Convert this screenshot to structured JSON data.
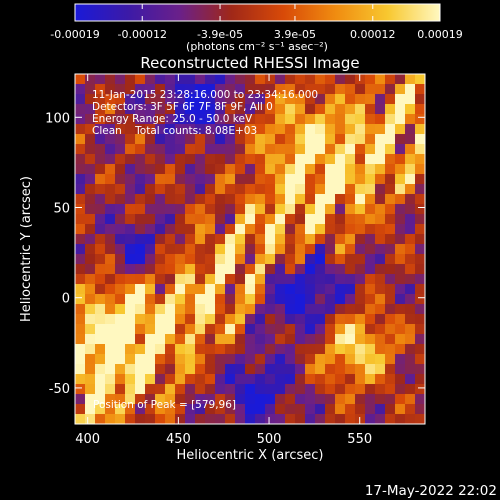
{
  "colorbar": {
    "ticks": [
      "-0.00019",
      "-0.00012",
      "-3.9e-05",
      "3.9e-05",
      "0.00012",
      "0.00019"
    ],
    "units": "(photons cm⁻² s⁻¹ asec⁻²)",
    "range": [
      -0.00019,
      0.00019
    ],
    "colors": [
      "#1a1ad8",
      "#3b1aa8",
      "#6a208a",
      "#a02818",
      "#d84a08",
      "#f08c10",
      "#f8c830",
      "#fff8c0"
    ]
  },
  "plot_date": "17-May-2022 22:02",
  "chart_data": {
    "type": "heatmap",
    "title": "Reconstructed RHESSI Image",
    "xlabel": "Heliocentric X (arcsec)",
    "ylabel": "Heliocentric Y (arcsec)",
    "xlim": [
      393,
      586
    ],
    "ylim": [
      -70,
      124
    ],
    "xticks": [
      "400",
      "450",
      "500",
      "550"
    ],
    "yticks": [
      "100",
      "50",
      "0",
      "-50"
    ],
    "xtick_values": [
      400,
      450,
      500,
      550
    ],
    "ytick_values": [
      100,
      50,
      0,
      -50
    ],
    "annotations": [
      "11-Jan-2015 23:28:16.000 to 23:34:16.000",
      "Detectors: 3F 5F 6F 7F 8F 9F, All 0",
      "Energy Range: 25.0 - 50.0 keV",
      "Clean    Total counts: 8.08E+03"
    ],
    "peak_label": "Position of Peak = [579,96]",
    "peak": [
      579,
      96
    ]
  }
}
